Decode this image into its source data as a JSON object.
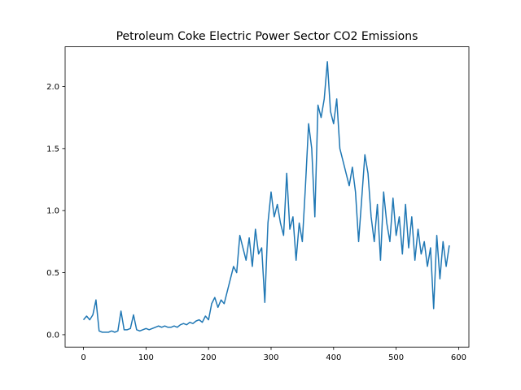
{
  "chart_data": {
    "type": "line",
    "title": "Petroleum Coke Electric Power Sector CO2 Emissions",
    "x": [
      0,
      5,
      10,
      15,
      20,
      25,
      30,
      35,
      40,
      45,
      50,
      55,
      60,
      65,
      70,
      75,
      80,
      85,
      90,
      95,
      100,
      105,
      110,
      115,
      120,
      125,
      130,
      135,
      140,
      145,
      150,
      155,
      160,
      165,
      170,
      175,
      180,
      185,
      190,
      195,
      200,
      205,
      210,
      215,
      220,
      225,
      230,
      235,
      240,
      245,
      250,
      255,
      260,
      265,
      270,
      275,
      280,
      285,
      290,
      295,
      300,
      305,
      310,
      315,
      320,
      325,
      330,
      335,
      340,
      345,
      350,
      355,
      360,
      365,
      370,
      375,
      380,
      385,
      390,
      395,
      400,
      405,
      410,
      415,
      420,
      425,
      430,
      435,
      440,
      445,
      450,
      455,
      460,
      465,
      470,
      475,
      480,
      485,
      490,
      495,
      500,
      505,
      510,
      515,
      520,
      525,
      530,
      535,
      540,
      545,
      550,
      555,
      560,
      565,
      570,
      575,
      580,
      585
    ],
    "series": [
      {
        "color": "#1f77b4",
        "values": [
          0.12,
          0.15,
          0.12,
          0.16,
          0.28,
          0.03,
          0.02,
          0.02,
          0.02,
          0.03,
          0.02,
          0.03,
          0.19,
          0.04,
          0.04,
          0.05,
          0.16,
          0.04,
          0.03,
          0.04,
          0.05,
          0.04,
          0.05,
          0.06,
          0.07,
          0.06,
          0.07,
          0.06,
          0.06,
          0.07,
          0.06,
          0.08,
          0.09,
          0.08,
          0.1,
          0.09,
          0.11,
          0.12,
          0.1,
          0.15,
          0.12,
          0.25,
          0.3,
          0.22,
          0.28,
          0.25,
          0.35,
          0.45,
          0.55,
          0.5,
          0.8,
          0.7,
          0.6,
          0.78,
          0.55,
          0.85,
          0.65,
          0.7,
          0.26,
          0.9,
          1.15,
          0.95,
          1.05,
          0.9,
          0.8,
          1.3,
          0.85,
          0.95,
          0.6,
          0.9,
          0.75,
          1.2,
          1.7,
          1.5,
          0.95,
          1.85,
          1.75,
          1.9,
          2.2,
          1.8,
          1.7,
          1.9,
          1.5,
          1.4,
          1.3,
          1.2,
          1.35,
          1.15,
          0.75,
          1.1,
          1.45,
          1.3,
          0.95,
          0.75,
          1.05,
          0.6,
          1.15,
          0.9,
          0.75,
          1.1,
          0.8,
          0.95,
          0.65,
          1.05,
          0.7,
          0.95,
          0.6,
          0.85,
          0.65,
          0.75,
          0.55,
          0.7,
          0.21,
          0.8,
          0.45,
          0.75,
          0.55,
          0.72
        ]
      }
    ],
    "xlim": [
      -29.35,
      616.35
    ],
    "ylim": [
      -0.1,
      2.32
    ],
    "xticks": [
      0,
      100,
      200,
      300,
      400,
      500,
      600
    ],
    "yticks": [
      {
        "value": 0,
        "label": "0.0"
      },
      0.5,
      {
        "value": 1,
        "label": "1.0"
      },
      1.5,
      {
        "value": 2,
        "label": "2.0"
      }
    ]
  }
}
